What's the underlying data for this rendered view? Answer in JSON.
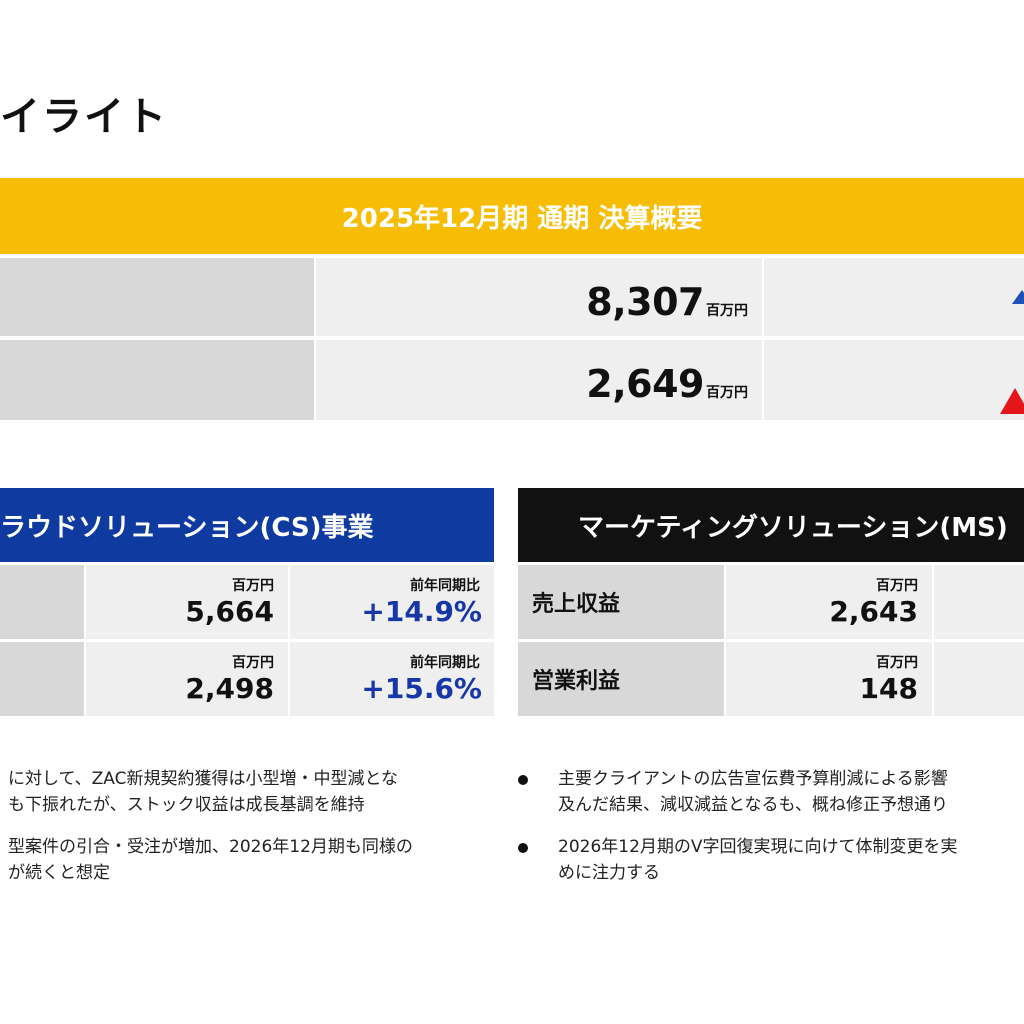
{
  "page": {
    "title": "イライト"
  },
  "summary": {
    "title": "2025年12月期 通期 決算概要",
    "rows": [
      {
        "value": "8,307",
        "unit": "百万円"
      },
      {
        "value": "2,649",
        "unit": "百万円"
      }
    ],
    "colors": {
      "banner": "#F7BD04",
      "arrow_blue": "#1F4FB8",
      "arrow_red": "#E3171B"
    }
  },
  "cs": {
    "title": "ラウドソリューション(CS)事業",
    "color": "#0F3BA0",
    "unit": "百万円",
    "change_label": "前年同期比",
    "rows": [
      {
        "value": "5,664",
        "change": "+14.9%"
      },
      {
        "value": "2,498",
        "change": "+15.6%"
      }
    ],
    "bullets": [
      "に対して、ZAC新規契約獲得は小型増・中型減とな\nも下振れたが、ストック収益は成長基調を維持",
      "型案件の引合・受注が増加、2026年12月期も同様の\nが続くと想定"
    ]
  },
  "ms": {
    "title": "マーケティングソリューション(MS)",
    "color": "#111111",
    "unit": "百万円",
    "rows": [
      {
        "label": "売上収益",
        "value": "2,643"
      },
      {
        "label": "営業利益",
        "value": "148"
      }
    ],
    "bullets": [
      "主要クライアントの広告宣伝費予算削減による影響\n及んだ結果、減収減益となるも、概ね修正予想通り",
      "2026年12月期のV字回復実現に向けて体制変更を実\nめに注力する"
    ]
  }
}
